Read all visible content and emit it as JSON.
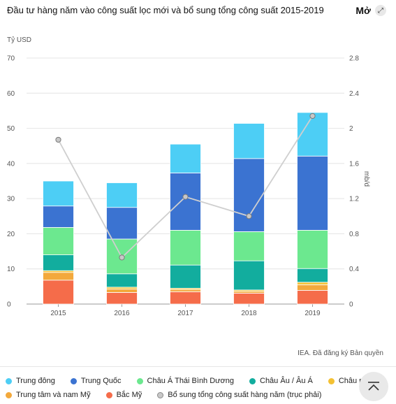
{
  "header": {
    "title": "Đầu tư hàng năm vào công suất lọc mới và bổ sung tổng công suất 2015-2019",
    "expand_label": "Mở"
  },
  "credit": "IEA. Đã đăng ký Bản quyền",
  "legend": {
    "items": [
      {
        "label": "Trung đông",
        "color": "#4dcef5"
      },
      {
        "label": "Trung Quốc",
        "color": "#3b73d1"
      },
      {
        "label": "Châu Á Thái Bình Dương",
        "color": "#6ce88f"
      },
      {
        "label": "Châu Âu / Âu Á",
        "color": "#12ad9e"
      },
      {
        "label": "Châu phi",
        "color": "#f4c133"
      },
      {
        "label": "Trung tâm và nam Mỹ",
        "color": "#f3a93c"
      },
      {
        "label": "Bắc Mỹ",
        "color": "#f56c4a"
      },
      {
        "label": "Bổ sung tổng công suất hàng năm (trục phải)",
        "color": "#c8c8c8"
      }
    ]
  },
  "chart_data": {
    "type": "bar",
    "stacked": true,
    "ylabel": "Tỷ USD",
    "y2label": "mb/d",
    "ylim": [
      0,
      70
    ],
    "y_ticks": [
      0,
      10,
      20,
      30,
      40,
      50,
      60,
      70
    ],
    "y2lim": [
      0,
      2.8
    ],
    "y2_ticks": [
      "0",
      "0.4",
      "0.8",
      "1.2",
      "1.6",
      "2",
      "2.4",
      "2.8"
    ],
    "categories": [
      "2015",
      "2016",
      "2017",
      "2018",
      "2019"
    ],
    "series": [
      {
        "name": "Bắc Mỹ",
        "color": "#f56c4a",
        "values": [
          6.8,
          3.3,
          3.5,
          3.1,
          3.9
        ]
      },
      {
        "name": "Trung tâm và nam Mỹ",
        "color": "#f3a93c",
        "values": [
          2.2,
          1.0,
          0.6,
          0.5,
          1.6
        ]
      },
      {
        "name": "Châu phi",
        "color": "#f4c133",
        "values": [
          0.5,
          0.5,
          0.4,
          0.4,
          0.7
        ]
      },
      {
        "name": "Châu Âu / Âu Á",
        "color": "#12ad9e",
        "values": [
          4.5,
          3.8,
          6.6,
          8.3,
          3.9
        ]
      },
      {
        "name": "Châu Á Thái Bình Dương",
        "color": "#6ce88f",
        "values": [
          7.8,
          9.9,
          9.9,
          8.3,
          10.9
        ]
      },
      {
        "name": "Trung Quốc",
        "color": "#3b73d1",
        "values": [
          6.1,
          9.0,
          16.3,
          20.8,
          21.1
        ]
      },
      {
        "name": "Trung đông",
        "color": "#4dcef5",
        "values": [
          7.1,
          7.0,
          8.2,
          10.0,
          12.4
        ]
      }
    ],
    "line_series": {
      "name": "Bổ sung tổng công suất hàng năm (trục phải)",
      "axis": "right",
      "color": "#c8c8c8",
      "values": [
        1.87,
        0.53,
        1.22,
        1.0,
        2.14
      ]
    }
  }
}
